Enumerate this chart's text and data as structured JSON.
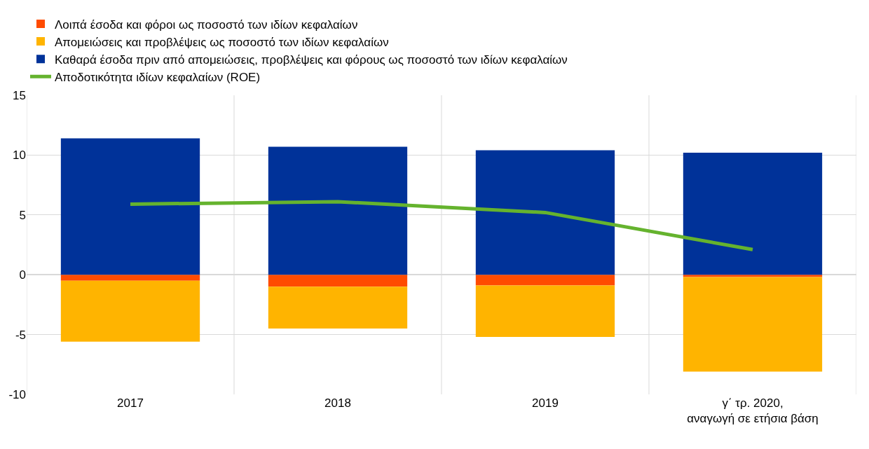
{
  "chart_data": {
    "type": "bar",
    "stacked": true,
    "categories": [
      "2017",
      "2018",
      "2019",
      "γ΄ τρ. 2020,\nαναγωγή σε ετήσια βάση"
    ],
    "series": [
      {
        "name": "Λοιπά έσοδα και φόροι ως ποσοστό των ιδίων κεφαλαίων",
        "color": "#ff4b00",
        "values": [
          -0.5,
          -1.0,
          -0.9,
          -0.2
        ]
      },
      {
        "name": "Απομειώσεις και προβλέψεις ως ποσοστό των ιδίων κεφαλαίων",
        "color": "#ffb400",
        "values": [
          -5.1,
          -3.5,
          -4.3,
          -7.9
        ]
      },
      {
        "name": "Καθαρά έσοδα πριν από απομειώσεις, προβλέψεις και φόρους ως ποσοστό των ιδίων κεφαλαίων",
        "color": "#003299",
        "values": [
          11.4,
          10.7,
          10.4,
          10.2
        ]
      },
      {
        "name": "Αποδοτικότητα ιδίων κεφαλαίων (ROE)",
        "type": "line",
        "color": "#65b32e",
        "values": [
          5.9,
          6.1,
          5.2,
          2.1
        ]
      }
    ],
    "ylim": [
      -10,
      15
    ],
    "yticks": [
      -10,
      -5,
      0,
      5,
      10,
      15
    ],
    "grid": true,
    "legend": "top left",
    "marker": "none",
    "line_style": "solid"
  }
}
